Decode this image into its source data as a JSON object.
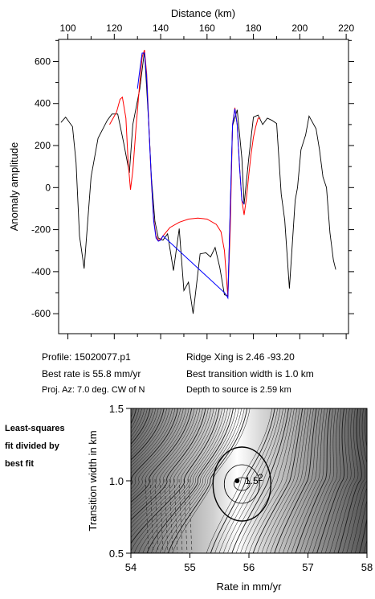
{
  "chart_data": [
    {
      "type": "line",
      "title": "",
      "xlabel": "Distance (km)",
      "ylabel": "Anomaly amplitude",
      "xlim": [
        96,
        221
      ],
      "ylim": [
        -695,
        705
      ],
      "xticks": [
        100,
        120,
        140,
        160,
        180,
        200,
        220
      ],
      "yticks": [
        -600,
        -400,
        -200,
        0,
        200,
        400,
        600
      ],
      "x_axis_position": "top",
      "grid": false,
      "series": [
        {
          "color": "#000000",
          "points": [
            [
              97,
              310
            ],
            [
              99,
              335
            ],
            [
              102,
              290
            ],
            [
              103.5,
              120
            ],
            [
              105,
              -230
            ],
            [
              107,
              -385
            ],
            [
              110,
              50
            ],
            [
              113,
              235
            ],
            [
              117,
              320
            ],
            [
              119,
              350
            ],
            [
              121.5,
              350
            ],
            [
              124,
              215
            ],
            [
              126.5,
              70
            ],
            [
              128,
              300
            ],
            [
              131,
              470
            ],
            [
              133,
              650
            ],
            [
              135,
              280
            ],
            [
              136,
              50
            ],
            [
              137.5,
              -160
            ],
            [
              139,
              -240
            ],
            [
              141,
              -250
            ],
            [
              143,
              -220
            ],
            [
              145.5,
              -395
            ],
            [
              148,
              -195
            ],
            [
              150,
              -490
            ],
            [
              152,
              -450
            ],
            [
              154,
              -600
            ],
            [
              157,
              -315
            ],
            [
              159.5,
              -310
            ],
            [
              161.5,
              -330
            ],
            [
              163.5,
              -285
            ],
            [
              165.5,
              -380
            ],
            [
              167.5,
              -510
            ],
            [
              169,
              -515
            ],
            [
              171,
              295
            ],
            [
              173,
              370
            ],
            [
              175,
              140
            ],
            [
              176,
              -80
            ],
            [
              178,
              140
            ],
            [
              180,
              335
            ],
            [
              182,
              345
            ],
            [
              184,
              300
            ],
            [
              186,
              330
            ],
            [
              188,
              320
            ],
            [
              190,
              305
            ],
            [
              192,
              -30
            ],
            [
              193.5,
              -155
            ],
            [
              195.5,
              -480
            ],
            [
              198,
              -60
            ],
            [
              199,
              0
            ],
            [
              200.5,
              180
            ],
            [
              202.5,
              250
            ],
            [
              204,
              340
            ],
            [
              207,
              280
            ],
            [
              208.5,
              180
            ],
            [
              210,
              50
            ],
            [
              211.5,
              0
            ],
            [
              213,
              -215
            ],
            [
              214.5,
              -345
            ],
            [
              215.5,
              -390
            ]
          ]
        },
        {
          "color": "#ff0000",
          "points": [
            [
              118,
              300
            ],
            [
              119.5,
              330
            ],
            [
              121,
              360
            ],
            [
              122.5,
              420
            ],
            [
              123.5,
              430
            ],
            [
              125,
              330
            ],
            [
              126,
              120
            ],
            [
              127,
              -10
            ],
            [
              128,
              80
            ],
            [
              129.5,
              300
            ],
            [
              131,
              500
            ],
            [
              132,
              620
            ],
            [
              133,
              655
            ],
            [
              134,
              540
            ],
            [
              135,
              280
            ],
            [
              136,
              30
            ],
            [
              137,
              -150
            ],
            [
              138,
              -230
            ],
            [
              139,
              -250
            ],
            [
              140,
              -245
            ],
            [
              141,
              -230
            ],
            [
              144,
              -190
            ],
            [
              148,
              -165
            ],
            [
              152,
              -150
            ],
            [
              156,
              -145
            ],
            [
              160,
              -150
            ],
            [
              164,
              -175
            ],
            [
              166,
              -210
            ],
            [
              167.5,
              -300
            ],
            [
              168.5,
              -450
            ],
            [
              169,
              -520
            ],
            [
              170,
              -200
            ],
            [
              171,
              300
            ],
            [
              172,
              380
            ],
            [
              173,
              300
            ],
            [
              174,
              100
            ],
            [
              175,
              -60
            ],
            [
              176,
              -130
            ],
            [
              177,
              -50
            ],
            [
              178,
              60
            ],
            [
              179,
              160
            ],
            [
              180,
              240
            ],
            [
              181,
              290
            ],
            [
              182,
              330
            ],
            [
              183,
              330
            ]
          ]
        },
        {
          "color": "#0000ff",
          "points": [
            [
              130,
              470
            ],
            [
              131,
              560
            ],
            [
              132,
              640
            ],
            [
              133,
              640
            ],
            [
              134,
              520
            ],
            [
              135,
              270
            ],
            [
              136,
              40
            ],
            [
              137,
              -160
            ],
            [
              138,
              -240
            ],
            [
              139,
              -255
            ],
            [
              140,
              -250
            ],
            [
              141,
              -230
            ],
            [
              168,
              -505
            ],
            [
              169,
              -525
            ],
            [
              170,
              -100
            ],
            [
              171,
              300
            ],
            [
              172,
              375
            ],
            [
              173,
              300
            ],
            [
              174,
              100
            ],
            [
              175,
              -60
            ],
            [
              176,
              -80
            ]
          ]
        }
      ]
    },
    {
      "type": "contour",
      "xlabel": "Rate in mm/yr",
      "ylabel": "Transition width in km",
      "xlim": [
        54,
        58
      ],
      "ylim": [
        0.5,
        1.5
      ],
      "xticks": [
        54,
        55,
        56,
        57,
        58
      ],
      "yticks": [
        0.5,
        1.0,
        1.5
      ],
      "grid": false,
      "best_fit": {
        "x": 55.8,
        "y": 1.0
      },
      "contour_labels": [
        "1.5",
        "2"
      ]
    }
  ],
  "info": {
    "profile": "Profile: 15020077.p1",
    "best_rate": "Best rate is 55.8 mm/yr",
    "proj_az": "Proj. Az: 7.0 deg. CW of N",
    "ridge_xing": "Ridge Xing is 2.46 -93.20",
    "best_transition": "Best transition width is 1.0 km",
    "depth": "Depth to source is   2.59 km"
  },
  "side_note": {
    "line1": "Least-squares",
    "line2": "fit divided by",
    "line3": "best fit"
  },
  "colors": {
    "observed": "#000000",
    "model": "#ff0000",
    "fit": "#0000ff"
  }
}
